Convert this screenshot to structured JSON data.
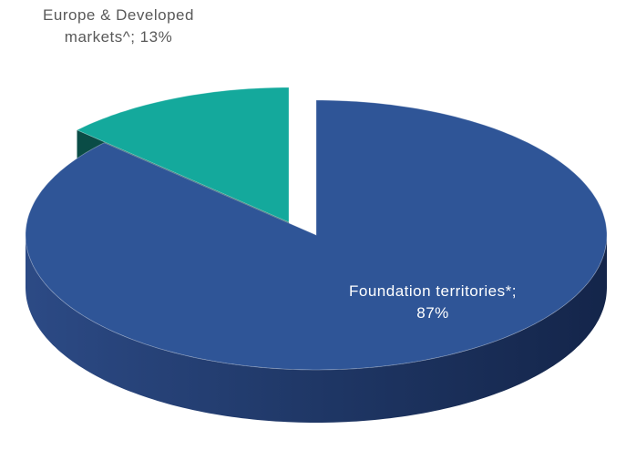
{
  "chart_data": {
    "type": "pie3d",
    "values": [
      87,
      13
    ],
    "value_labels": [
      "Foundation territories*; 87%",
      "Europe & Developed markets^; 13%"
    ],
    "colors": [
      "#2f5597",
      "#14a99c"
    ],
    "side_colors": [
      "#1f3766",
      "#0a4c46"
    ],
    "label_colors": [
      "#ffffff",
      "#595959"
    ]
  }
}
